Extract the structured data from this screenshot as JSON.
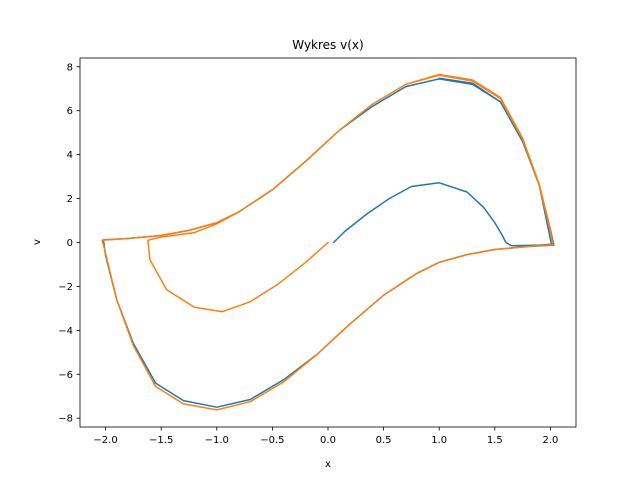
{
  "chart_data": {
    "type": "line",
    "title": "Wykres v(x)",
    "xlabel": "x",
    "ylabel": "v",
    "xlim": [
      -2.23,
      2.23
    ],
    "ylim": [
      -8.4,
      8.4
    ],
    "grid": false,
    "legend": "none",
    "xticks": [
      -2.0,
      -1.5,
      -1.0,
      -0.5,
      0.0,
      0.5,
      1.0,
      1.5,
      2.0
    ],
    "xtick_labels": [
      "−2.0",
      "−1.5",
      "−1.0",
      "−0.5",
      "0.0",
      "0.5",
      "1.0",
      "1.5",
      "2.0"
    ],
    "yticks": [
      -8,
      -6,
      -4,
      -2,
      0,
      2,
      4,
      6,
      8
    ],
    "ytick_labels": [
      "−8",
      "−6",
      "−4",
      "−2",
      "0",
      "2",
      "4",
      "6",
      "8"
    ],
    "series": [
      {
        "color": "#1f77b4",
        "points": [
          [
            0.05,
            0.0
          ],
          [
            0.15,
            0.5
          ],
          [
            0.35,
            1.3
          ],
          [
            0.55,
            2.0
          ],
          [
            0.75,
            2.55
          ],
          [
            1.0,
            2.72
          ],
          [
            1.25,
            2.3
          ],
          [
            1.4,
            1.6
          ],
          [
            1.5,
            0.9
          ],
          [
            1.57,
            0.3
          ],
          [
            1.6,
            0.0
          ],
          [
            1.65,
            -0.15
          ],
          [
            1.9,
            -0.12
          ],
          [
            2.01,
            -0.08
          ],
          [
            1.9,
            2.6
          ],
          [
            1.75,
            4.6
          ],
          [
            1.55,
            6.4
          ],
          [
            1.3,
            7.2
          ],
          [
            1.0,
            7.45
          ],
          [
            0.7,
            7.1
          ],
          [
            0.4,
            6.2
          ],
          [
            0.1,
            5.1
          ],
          [
            -0.2,
            3.7
          ],
          [
            -0.5,
            2.4
          ],
          [
            -0.8,
            1.4
          ],
          [
            -1.0,
            0.9
          ],
          [
            -1.25,
            0.55
          ],
          [
            -1.5,
            0.32
          ],
          [
            -1.8,
            0.18
          ],
          [
            -2.02,
            0.12
          ],
          [
            -2.0,
            -0.6
          ],
          [
            -1.9,
            -2.6
          ],
          [
            -1.75,
            -4.6
          ],
          [
            -1.55,
            -6.4
          ],
          [
            -1.3,
            -7.2
          ],
          [
            -1.0,
            -7.5
          ],
          [
            -0.7,
            -7.15
          ],
          [
            -0.4,
            -6.25
          ],
          [
            -0.1,
            -5.1
          ],
          [
            0.2,
            -3.7
          ],
          [
            0.5,
            -2.4
          ],
          [
            0.8,
            -1.4
          ],
          [
            1.0,
            -0.9
          ],
          [
            1.25,
            -0.55
          ],
          [
            1.5,
            -0.32
          ],
          [
            1.8,
            -0.18
          ],
          [
            2.03,
            -0.12
          ],
          [
            2.0,
            0.6
          ],
          [
            1.9,
            2.6
          ],
          [
            1.75,
            4.6
          ],
          [
            1.55,
            6.4
          ],
          [
            1.3,
            7.25
          ],
          [
            1.0,
            7.48
          ]
        ]
      },
      {
        "color": "#ff7f0e",
        "points": [
          [
            0.0,
            0.0
          ],
          [
            -0.2,
            -0.9
          ],
          [
            -0.45,
            -1.9
          ],
          [
            -0.7,
            -2.7
          ],
          [
            -0.95,
            -3.15
          ],
          [
            -1.2,
            -2.95
          ],
          [
            -1.45,
            -2.15
          ],
          [
            -1.6,
            -0.8
          ],
          [
            -1.62,
            0.1
          ],
          [
            -1.5,
            0.25
          ],
          [
            -1.2,
            0.45
          ],
          [
            -1.0,
            0.85
          ],
          [
            -0.8,
            1.4
          ],
          [
            -0.5,
            2.4
          ],
          [
            -0.2,
            3.7
          ],
          [
            0.1,
            5.1
          ],
          [
            0.4,
            6.3
          ],
          [
            0.7,
            7.2
          ],
          [
            1.0,
            7.62
          ],
          [
            1.3,
            7.35
          ],
          [
            1.55,
            6.55
          ],
          [
            1.75,
            4.7
          ],
          [
            1.9,
            2.6
          ],
          [
            2.0,
            0.5
          ],
          [
            2.02,
            -0.1
          ],
          [
            1.8,
            -0.18
          ],
          [
            1.5,
            -0.32
          ],
          [
            1.25,
            -0.55
          ],
          [
            1.0,
            -0.9
          ],
          [
            0.8,
            -1.4
          ],
          [
            0.5,
            -2.4
          ],
          [
            0.2,
            -3.7
          ],
          [
            -0.1,
            -5.1
          ],
          [
            -0.4,
            -6.35
          ],
          [
            -0.7,
            -7.25
          ],
          [
            -1.0,
            -7.62
          ],
          [
            -1.3,
            -7.35
          ],
          [
            -1.55,
            -6.55
          ],
          [
            -1.75,
            -4.7
          ],
          [
            -1.9,
            -2.6
          ],
          [
            -2.0,
            -0.5
          ],
          [
            -2.03,
            0.1
          ],
          [
            -1.8,
            0.18
          ],
          [
            -1.5,
            0.32
          ],
          [
            -1.25,
            0.55
          ],
          [
            -1.0,
            0.9
          ],
          [
            -0.8,
            1.4
          ],
          [
            -0.5,
            2.4
          ],
          [
            -0.2,
            3.7
          ],
          [
            0.1,
            5.1
          ],
          [
            0.4,
            6.3
          ],
          [
            0.7,
            7.2
          ],
          [
            1.0,
            7.65
          ],
          [
            1.3,
            7.4
          ],
          [
            1.55,
            6.6
          ],
          [
            1.75,
            4.75
          ],
          [
            1.9,
            2.65
          ],
          [
            2.0,
            0.55
          ],
          [
            2.02,
            -0.05
          ]
        ]
      }
    ]
  }
}
